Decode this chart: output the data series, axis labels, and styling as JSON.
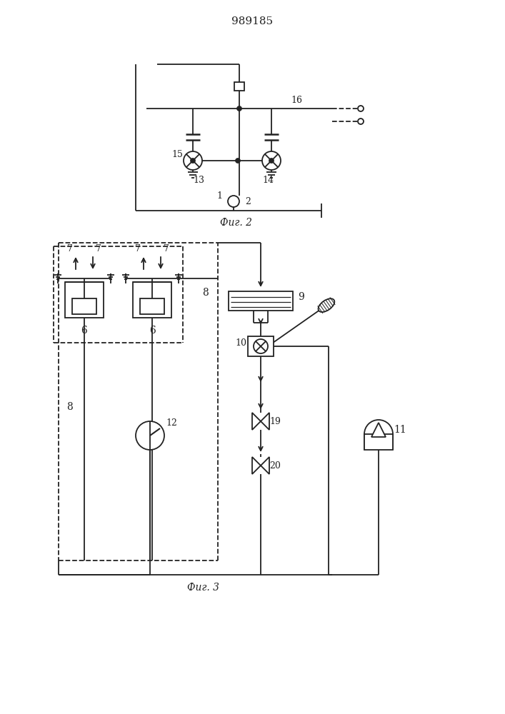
{
  "title": "989185",
  "fig2_label": "Фиг. 2",
  "fig3_label": "Фиг. 3",
  "bg_color": "#ffffff",
  "line_color": "#222222",
  "line_width": 1.3
}
